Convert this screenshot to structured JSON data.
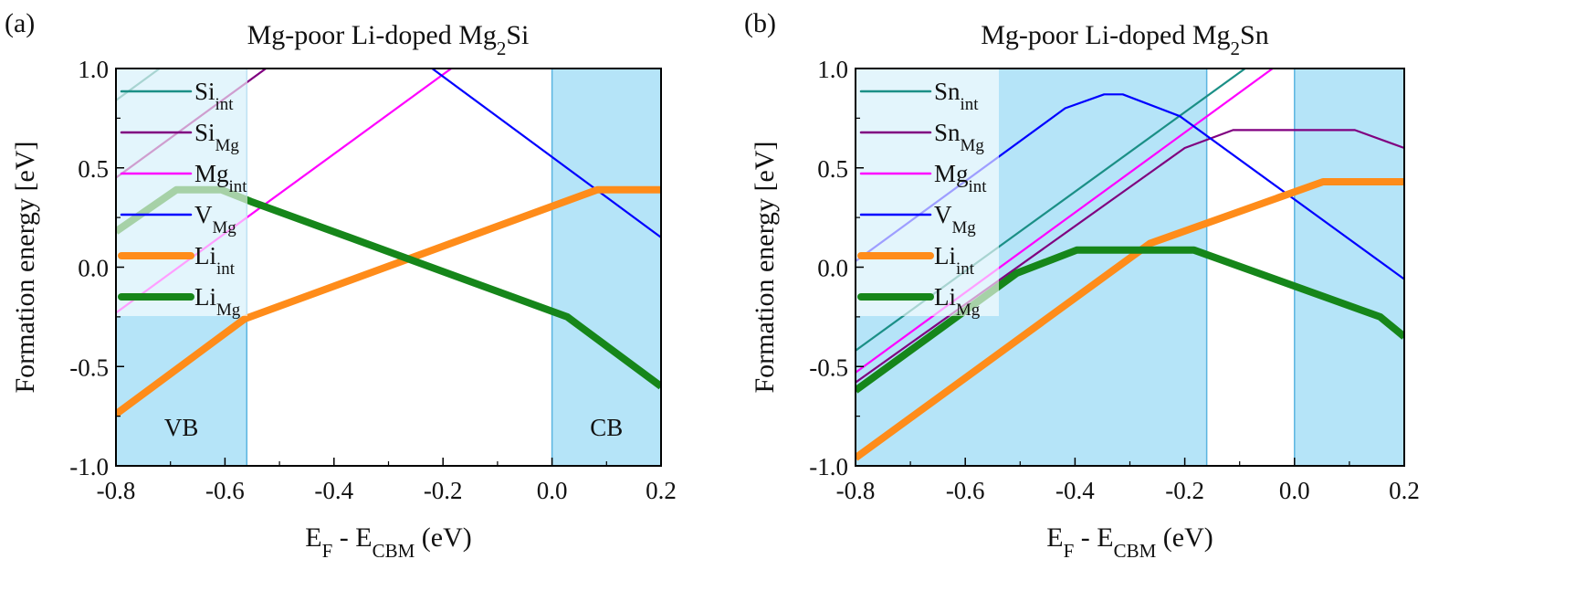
{
  "chart_data": [
    {
      "type": "line",
      "panel_label": "(a)",
      "title": {
        "pre": "Mg-poor Li-doped Mg",
        "sub": "2",
        "post": "Si"
      },
      "xlabel": {
        "a": "E",
        "a_sub": "F",
        "mid": " - E",
        "b_sub": "CBM",
        "post": " (eV)"
      },
      "ylabel": "Formation energy [eV]",
      "xlim": [
        -0.8,
        0.2
      ],
      "ylim": [
        -1.0,
        1.0
      ],
      "xticks": [
        "-0.8",
        "-0.6",
        "-0.4",
        "-0.2",
        "0.0",
        "0.2"
      ],
      "yticks": [
        "-1.0",
        "-0.5",
        "0.0",
        "0.5",
        "1.0"
      ],
      "grid": false,
      "legend_placement": "top-left",
      "bands": [
        {
          "label": "VB",
          "range": [
            -0.8,
            -0.56
          ]
        },
        {
          "label": "CB",
          "range": [
            0.0,
            0.2
          ]
        }
      ],
      "series": [
        {
          "base": "Si",
          "sub": "int",
          "color": "#1b8f86",
          "width": "thin",
          "points": [
            [
              -0.8,
              0.84
            ],
            [
              -0.72,
              1.0
            ]
          ]
        },
        {
          "base": "Si",
          "sub": "Mg",
          "color": "#800080",
          "width": "thin",
          "points": [
            [
              -0.8,
              0.45
            ],
            [
              -0.525,
              1.0
            ]
          ]
        },
        {
          "base": "Mg",
          "sub": "int",
          "color": "#ff00ff",
          "width": "thin",
          "points": [
            [
              -0.8,
              -0.23
            ],
            [
              -0.185,
              1.0
            ]
          ]
        },
        {
          "base": "V",
          "sub": "Mg",
          "color": "#0000ff",
          "width": "thin",
          "points": [
            [
              -0.22,
              1.0
            ],
            [
              0.2,
              0.15
            ]
          ]
        },
        {
          "base": "Li",
          "sub": "int",
          "color": "#ff8c1a",
          "width": "thick",
          "points": [
            [
              -0.8,
              -0.74
            ],
            [
              -0.564,
              -0.26
            ],
            [
              0.083,
              0.39
            ],
            [
              0.2,
              0.39
            ]
          ]
        },
        {
          "base": "Li",
          "sub": "Mg",
          "color": "#16861a",
          "width": "thick",
          "points": [
            [
              -0.8,
              0.18
            ],
            [
              -0.689,
              0.39
            ],
            [
              -0.607,
              0.39
            ],
            [
              -0.552,
              0.33
            ],
            [
              0.028,
              -0.25
            ],
            [
              0.2,
              -0.6
            ]
          ]
        }
      ]
    },
    {
      "type": "line",
      "panel_label": "(b)",
      "title": {
        "pre": "Mg-poor Li-doped Mg",
        "sub": "2",
        "post": "Sn"
      },
      "xlabel": {
        "a": "E",
        "a_sub": "F",
        "mid": " - E",
        "b_sub": "CBM",
        "post": " (eV)"
      },
      "ylabel": "Formation energy [eV]",
      "xlim": [
        -0.8,
        0.2
      ],
      "ylim": [
        -1.0,
        1.0
      ],
      "xticks": [
        "-0.8",
        "-0.6",
        "-0.4",
        "-0.2",
        "0.0",
        "0.2"
      ],
      "yticks": [
        "-1.0",
        "-0.5",
        "0.0",
        "0.5",
        "1.0"
      ],
      "grid": false,
      "legend_placement": "top-left",
      "bands": [
        {
          "label": "",
          "range": [
            -0.8,
            -0.16
          ]
        },
        {
          "label": "",
          "range": [
            0.0,
            0.2
          ]
        }
      ],
      "series": [
        {
          "base": "Sn",
          "sub": "int",
          "color": "#1b8f86",
          "width": "thin",
          "points": [
            [
              -0.8,
              -0.42
            ],
            [
              -0.09,
              1.0
            ]
          ]
        },
        {
          "base": "Sn",
          "sub": "Mg",
          "color": "#800080",
          "width": "thin",
          "points": [
            [
              -0.8,
              -0.58
            ],
            [
              -0.2,
              0.6
            ],
            [
              -0.112,
              0.69
            ],
            [
              0.11,
              0.69
            ],
            [
              0.2,
              0.6
            ]
          ]
        },
        {
          "base": "Mg",
          "sub": "int",
          "color": "#ff00ff",
          "width": "thin",
          "points": [
            [
              -0.8,
              -0.53
            ],
            [
              -0.04,
              1.0
            ]
          ]
        },
        {
          "base": "V",
          "sub": "Mg",
          "color": "#0000ff",
          "width": "thin",
          "points": [
            [
              -0.8,
              0.03
            ],
            [
              -0.418,
              0.8
            ],
            [
              -0.347,
              0.87
            ],
            [
              -0.313,
              0.87
            ],
            [
              -0.209,
              0.76
            ],
            [
              0.2,
              -0.06
            ]
          ]
        },
        {
          "base": "Li",
          "sub": "int",
          "color": "#ff8c1a",
          "width": "thick",
          "points": [
            [
              -0.8,
              -0.96
            ],
            [
              -0.263,
              0.12
            ],
            [
              0.052,
              0.43
            ],
            [
              0.2,
              0.43
            ]
          ]
        },
        {
          "base": "Li",
          "sub": "Mg",
          "color": "#16861a",
          "width": "thick",
          "points": [
            [
              -0.8,
              -0.62
            ],
            [
              -0.506,
              -0.03
            ],
            [
              -0.397,
              0.086
            ],
            [
              -0.183,
              0.086
            ],
            [
              0.156,
              -0.25
            ],
            [
              0.2,
              -0.35
            ]
          ]
        }
      ]
    }
  ],
  "colors": {
    "band_fill": "#b5e4f8",
    "band_edge": "#5ab4e0",
    "axis": "#000000"
  }
}
